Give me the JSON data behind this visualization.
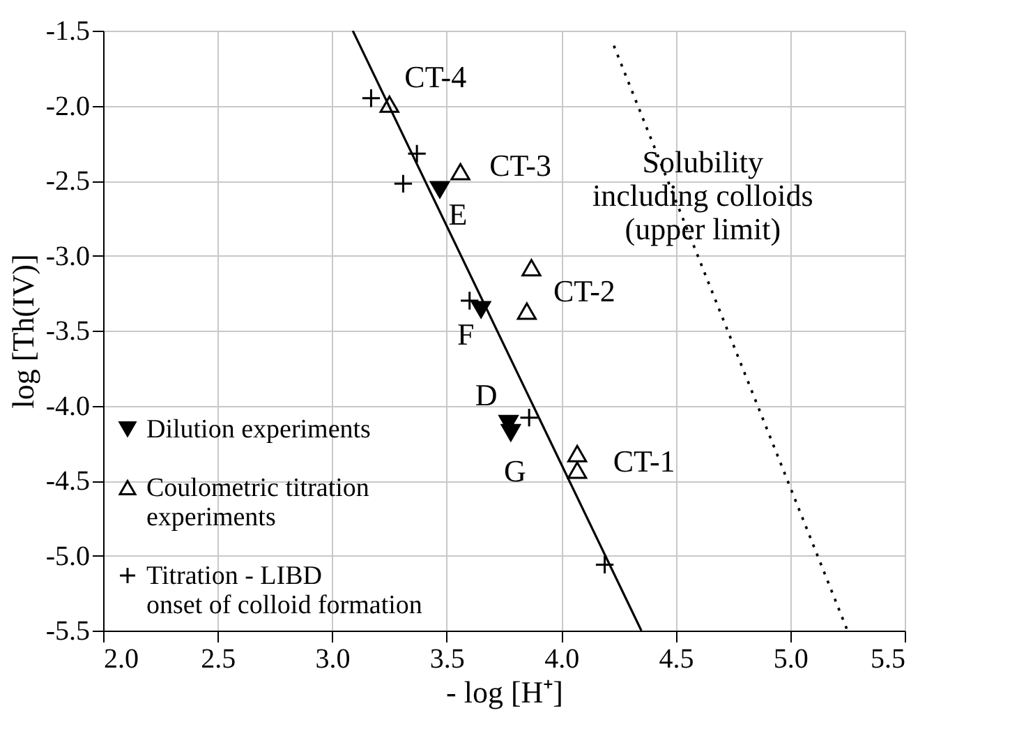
{
  "chart_data": {
    "type": "scatter",
    "xlabel": "- log [H⁺]",
    "ylabel": "log [Th(IV)]",
    "xlim": [
      2.0,
      5.5
    ],
    "ylim": [
      -5.5,
      -1.5
    ],
    "xticks": [
      {
        "value": 2.0,
        "label": "2.0"
      },
      2.5,
      {
        "value": 3.0,
        "label": "3.0"
      },
      3.5,
      {
        "value": 4.0,
        "label": "4.0"
      },
      4.5,
      {
        "value": 5.0,
        "label": "5.0"
      },
      5.5
    ],
    "yticks": [
      {
        "value": -5.5,
        "label": "-5.5"
      },
      {
        "value": -5.0,
        "label": "-5.0"
      },
      {
        "value": -4.5,
        "label": "-4.5"
      },
      {
        "value": -4.0,
        "label": "-4.0"
      },
      {
        "value": -3.5,
        "label": "-3.5"
      },
      {
        "value": -3.0,
        "label": "-3.0"
      },
      {
        "value": -2.5,
        "label": "-2.5"
      },
      {
        "value": -2.0,
        "label": "-2.0"
      },
      {
        "value": -1.5,
        "label": "-1.5"
      }
    ],
    "grid": true,
    "legend": "bottom left",
    "series": [
      {
        "name": "Dilution experiments",
        "type": "scatter",
        "marker": "triangle-down",
        "color": "#000000",
        "x": [
          3.47,
          3.65,
          3.77,
          3.78
        ],
        "values": [
          -2.56,
          -3.36,
          -4.12,
          -4.18
        ]
      },
      {
        "name": "Coulometric titration\nexperiments",
        "type": "scatter",
        "marker": "triangle",
        "color": "#000000",
        "x": [
          3.25,
          3.56,
          3.87,
          3.85,
          4.07,
          4.07
        ],
        "values": [
          -1.99,
          -2.44,
          -3.08,
          -3.37,
          -4.32,
          -4.43
        ]
      },
      {
        "name": "Titration - LIBD\nonset of colloid formation",
        "type": "scatter",
        "marker": "cross",
        "color": "#000000",
        "x": [
          3.17,
          3.37,
          3.31,
          3.6,
          3.86,
          4.19
        ],
        "values": [
          -1.95,
          -2.32,
          -2.52,
          -3.3,
          -4.08,
          -5.06
        ]
      },
      {
        "type": "line",
        "line_style": "solid",
        "color": "#000000",
        "x": [
          3.09,
          4.35
        ],
        "values": [
          -1.5,
          -5.5
        ]
      },
      {
        "type": "line",
        "line_style": "dotted",
        "color": "#000000",
        "x": [
          4.23,
          5.25
        ],
        "values": [
          -1.6,
          -5.5
        ]
      }
    ],
    "annotations": [
      {
        "text": "CT-4",
        "x": 3.25,
        "y": -1.99
      },
      {
        "text": "CT-3",
        "x": 3.56,
        "y": -2.44
      },
      {
        "text": "E",
        "x": 3.47,
        "y": -2.56
      },
      {
        "text": "CT-2",
        "x": 3.87,
        "y": -3.08
      },
      {
        "text": "F",
        "x": 3.65,
        "y": -3.36
      },
      {
        "text": "D",
        "x": 3.77,
        "y": -4.12
      },
      {
        "text": "G",
        "x": 3.78,
        "y": -4.18
      },
      {
        "text": "CT-1",
        "x": 4.07,
        "y": -4.32
      },
      {
        "text": "Solubility\nincluding colloids\n(upper limit)",
        "x": 4.6,
        "y": -3.01
      }
    ]
  }
}
